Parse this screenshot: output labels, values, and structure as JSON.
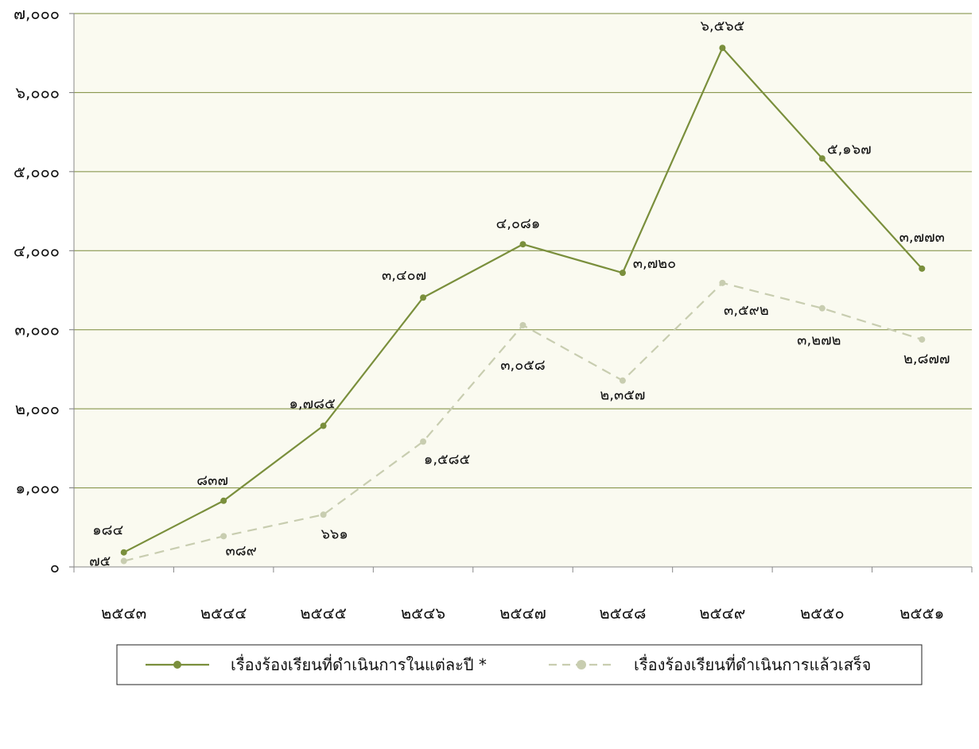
{
  "chart_data": {
    "type": "line",
    "categories": [
      "๒๕๔๓",
      "๒๕๔๔",
      "๒๕๔๕",
      "๒๕๔๖",
      "๒๕๔๗",
      "๒๕๔๘",
      "๒๕๔๙",
      "๒๕๕๐",
      "๒๕๕๑"
    ],
    "ylim": [
      0,
      7000
    ],
    "yticks": [
      0,
      1000,
      2000,
      3000,
      4000,
      5000,
      6000,
      7000
    ],
    "ytick_labels": [
      "๐",
      "๑,๐๐๐",
      "๒,๐๐๐",
      "๓,๐๐๐",
      "๔,๐๐๐",
      "๕,๐๐๐",
      "๖,๐๐๐",
      "๗,๐๐๐"
    ],
    "grid": true,
    "legend_position": "bottom",
    "colors": {
      "plot_bg": "#fafaf0",
      "gridline": "#7a8a3a",
      "series1": "#7a8f3c",
      "series2": "#c8cdb0"
    },
    "series": [
      {
        "name": "เรื่องร้องเรียนที่ดำเนินการในแต่ละปี *",
        "style": "solid",
        "values": [
          184,
          837,
          1785,
          3407,
          4081,
          3720,
          6565,
          5167,
          3773
        ],
        "labels": [
          "๑๘๔",
          "๘๓๗",
          "๑,๗๘๕",
          "๓,๔๐๗",
          "๔,๐๘๑",
          "๓,๗๒๐",
          "๖,๕๖๕",
          "๕,๑๖๗",
          "๓,๗๗๓"
        ]
      },
      {
        "name": "เรื่องร้องเรียนที่ดำเนินการแล้วเสร็จ",
        "style": "dashed",
        "values": [
          75,
          389,
          661,
          1585,
          3058,
          2357,
          3592,
          3272,
          2877
        ],
        "labels": [
          "๗๕",
          "๓๘๙",
          "๖๖๑",
          "๑,๕๘๕",
          "๓,๐๕๘",
          "๒,๓๕๗",
          "๓,๕๙๒",
          "๓,๒๗๒",
          "๒,๘๗๗"
        ]
      }
    ]
  }
}
